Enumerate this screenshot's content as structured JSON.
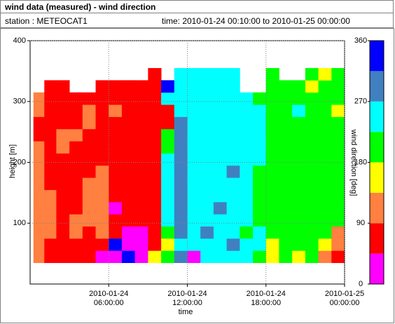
{
  "header": {
    "title": "wind data (measured) - wind direction",
    "station": "station : METEOCAT1",
    "time": "time: 2010-01-24 00:10:00 to 2010-01-25 00:00:00"
  },
  "chart_data": {
    "type": "heatmap",
    "xlabel": "time",
    "ylabel": "height [m]",
    "colorbar_label": "wind direction [deg]",
    "xlim": [
      "2010-01-24 00:00:00",
      "2010-01-25 00:00:00"
    ],
    "xticks": [
      {
        "value": "2010-01-24 06:00:00",
        "label": "2010-01-24 06:00:00"
      },
      {
        "value": "2010-01-24 12:00:00",
        "label": "2010-01-24 12:00:00"
      },
      {
        "value": "2010-01-24 18:00:00",
        "label": "2010-01-24 18:00:00"
      },
      {
        "value": "2010-01-25 00:00:00",
        "label": "2010-01-25 00:00:00"
      }
    ],
    "ylim": [
      0,
      400
    ],
    "yticks": [
      100,
      200,
      300,
      400
    ],
    "grid": true,
    "x": [
      "2010-01-24 00:40:00",
      "2010-01-24 01:30:00",
      "2010-01-24 02:30:00",
      "2010-01-24 03:30:00",
      "2010-01-24 04:30:00",
      "2010-01-24 05:30:00",
      "2010-01-24 06:30:00",
      "2010-01-24 07:30:00",
      "2010-01-24 08:30:00",
      "2010-01-24 09:30:00",
      "2010-01-24 10:30:00",
      "2010-01-24 11:30:00",
      "2010-01-24 12:30:00",
      "2010-01-24 13:30:00",
      "2010-01-24 14:30:00",
      "2010-01-24 15:30:00",
      "2010-01-24 16:30:00",
      "2010-01-24 17:30:00",
      "2010-01-24 18:30:00",
      "2010-01-24 19:30:00",
      "2010-01-24 20:30:00",
      "2010-01-24 21:30:00",
      "2010-01-24 22:30:00",
      "2010-01-24 23:30:00"
    ],
    "y": [
      45,
      65,
      85,
      105,
      125,
      145,
      165,
      185,
      205,
      225,
      245,
      265,
      285,
      305,
      325,
      345
    ],
    "z": [
      [
        110,
        110,
        110,
        110,
        110,
        110,
        110,
        110,
        110,
        110,
        70,
        70,
        110,
        110,
        null,
        null
      ],
      [
        70,
        70,
        110,
        110,
        110,
        110,
        70,
        70,
        70,
        70,
        70,
        70,
        70,
        70,
        70,
        null
      ],
      [
        70,
        70,
        70,
        70,
        70,
        70,
        70,
        70,
        70,
        110,
        110,
        70,
        70,
        70,
        70,
        null
      ],
      [
        70,
        70,
        110,
        110,
        70,
        70,
        70,
        70,
        70,
        70,
        110,
        70,
        70,
        70,
        null,
        null
      ],
      [
        70,
        70,
        70,
        110,
        110,
        110,
        110,
        70,
        70,
        70,
        70,
        110,
        110,
        70,
        null,
        null
      ],
      [
        20,
        70,
        110,
        110,
        110,
        110,
        110,
        110,
        70,
        70,
        70,
        70,
        70,
        70,
        70,
        null
      ],
      [
        20,
        340,
        70,
        70,
        20,
        70,
        70,
        70,
        70,
        70,
        70,
        70,
        110,
        70,
        70,
        null
      ],
      [
        340,
        20,
        20,
        70,
        70,
        70,
        70,
        70,
        70,
        70,
        70,
        70,
        70,
        70,
        70,
        null
      ],
      [
        20,
        20,
        20,
        70,
        70,
        70,
        70,
        70,
        70,
        70,
        70,
        70,
        70,
        70,
        70,
        null
      ],
      [
        160,
        70,
        70,
        70,
        70,
        70,
        70,
        70,
        70,
        70,
        70,
        70,
        70,
        70,
        70,
        70
      ],
      [
        200,
        160,
        200,
        250,
        250,
        250,
        250,
        250,
        250,
        200,
        200,
        70,
        70,
        250,
        340,
        null
      ],
      [
        290,
        250,
        290,
        290,
        290,
        290,
        290,
        290,
        290,
        290,
        290,
        290,
        250,
        250,
        250,
        250
      ],
      [
        20,
        250,
        250,
        250,
        250,
        250,
        250,
        250,
        250,
        250,
        250,
        250,
        250,
        250,
        250,
        250
      ],
      [
        250,
        250,
        290,
        250,
        250,
        250,
        250,
        250,
        250,
        250,
        250,
        250,
        250,
        250,
        250,
        250
      ],
      [
        250,
        250,
        250,
        250,
        290,
        250,
        250,
        250,
        250,
        250,
        250,
        250,
        250,
        250,
        250,
        250
      ],
      [
        250,
        290,
        250,
        250,
        250,
        250,
        250,
        290,
        250,
        250,
        250,
        250,
        250,
        250,
        250,
        250
      ],
      [
        250,
        250,
        200,
        250,
        250,
        250,
        250,
        250,
        250,
        250,
        250,
        250,
        250,
        250,
        null,
        null
      ],
      [
        200,
        250,
        250,
        200,
        200,
        200,
        200,
        200,
        250,
        250,
        250,
        250,
        250,
        200,
        null,
        null
      ],
      [
        160,
        160,
        200,
        200,
        200,
        200,
        200,
        200,
        200,
        200,
        200,
        200,
        200,
        200,
        200,
        200
      ],
      [
        200,
        200,
        200,
        200,
        200,
        200,
        200,
        200,
        200,
        200,
        200,
        200,
        200,
        200,
        200,
        null
      ],
      [
        160,
        200,
        200,
        200,
        200,
        200,
        200,
        200,
        200,
        200,
        200,
        200,
        250,
        200,
        200,
        null
      ],
      [
        200,
        200,
        200,
        200,
        200,
        200,
        200,
        200,
        200,
        200,
        200,
        200,
        200,
        200,
        160,
        200
      ],
      [
        110,
        160,
        200,
        200,
        200,
        200,
        200,
        200,
        200,
        200,
        200,
        200,
        200,
        200,
        200,
        160
      ],
      [
        70,
        110,
        110,
        200,
        200,
        200,
        200,
        200,
        200,
        200,
        200,
        200,
        160,
        200,
        200,
        200
      ]
    ],
    "colorscale": {
      "bounds": [
        0,
        45,
        90,
        135,
        180,
        225,
        270,
        315,
        360
      ],
      "colors": [
        "#ff00ff",
        "#ff0000",
        "#ff8040",
        "#ffff00",
        "#00ff00",
        "#00ffff",
        "#4080c0",
        "#0000ff"
      ]
    },
    "colorbar_ticks": [
      0,
      90,
      180,
      270,
      360
    ]
  }
}
